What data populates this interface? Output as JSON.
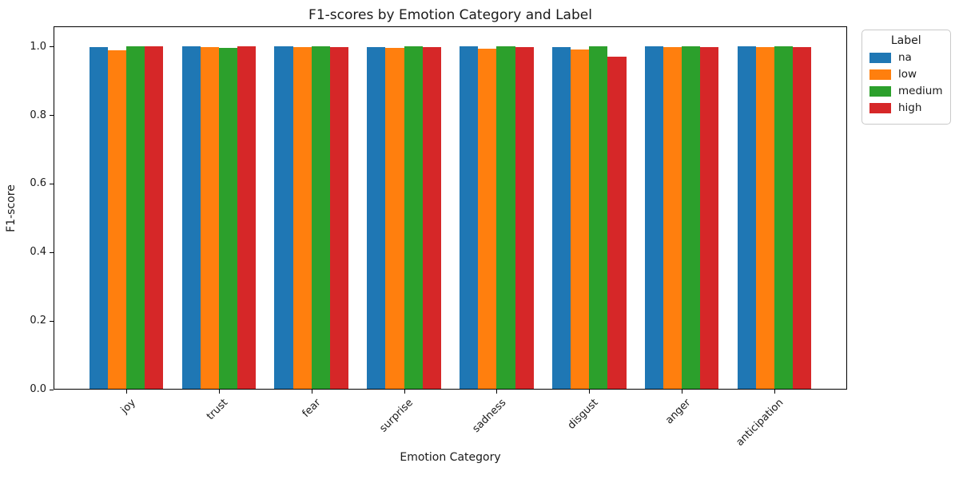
{
  "chart_data": {
    "type": "bar",
    "title": "F1-scores by Emotion Category and Label",
    "xlabel": "Emotion Category",
    "ylabel": "F1-score",
    "ylim": [
      0,
      1.06
    ],
    "yticks": [
      0.0,
      0.2,
      0.4,
      0.6,
      0.8,
      1.0
    ],
    "categories": [
      "joy",
      "trust",
      "fear",
      "surprise",
      "sadness",
      "disgust",
      "anger",
      "anticipation"
    ],
    "series": [
      {
        "name": "na",
        "color": "#1f77b4",
        "values": [
          0.998,
          0.999,
          0.999,
          0.998,
          0.999,
          0.998,
          0.999,
          0.999
        ]
      },
      {
        "name": "low",
        "color": "#ff7f0e",
        "values": [
          0.988,
          0.997,
          0.996,
          0.995,
          0.993,
          0.989,
          0.996,
          0.998
        ]
      },
      {
        "name": "medium",
        "color": "#2ca02c",
        "values": [
          1.0,
          0.995,
          0.999,
          0.999,
          1.0,
          1.0,
          1.0,
          0.999
        ]
      },
      {
        "name": "high",
        "color": "#d62728",
        "values": [
          0.999,
          0.999,
          0.998,
          0.998,
          0.998,
          0.97,
          0.998,
          0.998
        ]
      }
    ],
    "legend": {
      "title": "Label",
      "position": "upper right outside"
    },
    "grid": false,
    "bar_group_width_ratio": 0.8
  }
}
